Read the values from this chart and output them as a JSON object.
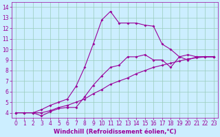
{
  "xlabel": "Windchill (Refroidissement éolien,°C)",
  "bg_color": "#cceeff",
  "line_color": "#990099",
  "grid_color": "#99ccbb",
  "xlim": [
    -0.5,
    23.5
  ],
  "ylim": [
    3.5,
    14.5
  ],
  "yticks": [
    4,
    5,
    6,
    7,
    8,
    9,
    10,
    11,
    12,
    13,
    14
  ],
  "xticks": [
    0,
    1,
    2,
    3,
    4,
    5,
    6,
    7,
    8,
    9,
    10,
    11,
    12,
    13,
    14,
    15,
    16,
    17,
    18,
    19,
    20,
    21,
    22,
    23
  ],
  "line1_x": [
    0,
    1,
    2,
    3,
    4,
    5,
    6,
    7,
    8,
    9,
    10,
    11,
    12,
    13,
    14,
    15,
    16,
    17,
    18,
    19,
    20,
    21,
    22,
    23
  ],
  "line1_y": [
    4.0,
    4.0,
    4.0,
    3.7,
    4.1,
    4.4,
    4.5,
    4.5,
    5.5,
    6.6,
    7.5,
    8.3,
    8.5,
    9.3,
    9.3,
    9.5,
    9.0,
    9.0,
    8.3,
    9.3,
    9.5,
    9.3,
    9.3,
    9.3
  ],
  "line2_x": [
    0,
    1,
    2,
    3,
    4,
    5,
    6,
    7,
    8,
    9,
    10,
    11,
    12,
    13,
    14,
    15,
    16,
    17,
    18,
    19,
    20,
    21,
    22,
    23
  ],
  "line2_y": [
    4.0,
    4.0,
    4.0,
    4.3,
    4.7,
    5.0,
    5.3,
    6.5,
    8.3,
    10.5,
    12.8,
    13.6,
    12.5,
    12.5,
    12.5,
    12.3,
    12.2,
    10.5,
    10.0,
    9.3,
    9.0,
    9.3,
    9.3,
    9.3
  ],
  "line3_x": [
    0,
    1,
    2,
    3,
    4,
    5,
    6,
    7,
    8,
    9,
    10,
    11,
    12,
    13,
    14,
    15,
    16,
    17,
    18,
    19,
    20,
    21,
    22,
    23
  ],
  "line3_y": [
    4.0,
    4.0,
    4.0,
    4.0,
    4.2,
    4.5,
    4.7,
    5.0,
    5.3,
    5.8,
    6.2,
    6.7,
    7.0,
    7.3,
    7.7,
    8.0,
    8.3,
    8.5,
    8.7,
    8.9,
    9.1,
    9.2,
    9.3,
    9.3
  ],
  "tick_fontsize": 5.5,
  "xlabel_fontsize": 6,
  "marker_size": 2.0,
  "linewidth": 0.8
}
